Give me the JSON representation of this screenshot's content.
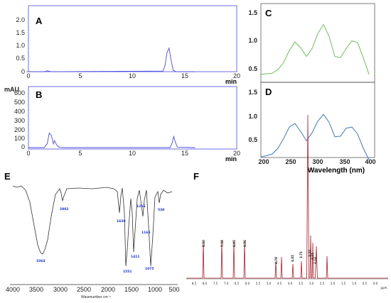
{
  "colors": {
    "hplc": "#4a4adf",
    "uv_c": "#6cbf5a",
    "uv_d": "#3f79b4",
    "ir": "#333333",
    "ir_label": "#1a2fd0",
    "nmr": "#a8202c"
  },
  "chart_data": [
    {
      "panel": "A",
      "type": "line",
      "xlabel": "min",
      "ylabel": "",
      "xlim": [
        0,
        20
      ],
      "ylim": [
        0,
        2.3
      ],
      "x_ticks": [
        "0",
        "5",
        "10",
        "15",
        "20"
      ],
      "y_ticks": [
        "0",
        "0.5",
        "1.0",
        "1.5",
        "2.0"
      ],
      "series": [
        {
          "x": [
            0,
            1.5,
            1.8,
            2.2,
            3,
            12.9,
            13.1,
            13.3,
            13.5,
            13.7,
            13.9,
            14.2,
            16
          ],
          "y": [
            0,
            0,
            0.03,
            0,
            0,
            0.02,
            0.18,
            0.65,
            0.82,
            0.4,
            0.05,
            0,
            0
          ]
        }
      ]
    },
    {
      "panel": "B",
      "type": "line",
      "ytitle": "mAU",
      "xlabel": "min",
      "ylabel": "",
      "xlim": [
        0,
        20
      ],
      "ylim": [
        0,
        650
      ],
      "x_ticks": [
        "0",
        "5",
        "10",
        "15",
        "20"
      ],
      "y_ticks": [
        "0",
        "100",
        "200",
        "300",
        "400",
        "500",
        "600"
      ],
      "series": [
        {
          "x": [
            0,
            1.5,
            1.8,
            2.0,
            2.2,
            2.4,
            2.5,
            2.7,
            2.85,
            3.0,
            3.5,
            13.6,
            13.8,
            13.95,
            14.1,
            14.3,
            16
          ],
          "y": [
            0,
            0,
            40,
            155,
            130,
            40,
            75,
            30,
            10,
            2,
            0,
            0,
            50,
            118,
            60,
            5,
            0
          ]
        }
      ]
    },
    {
      "panel": "C",
      "type": "line",
      "xlabel": "",
      "ylabel": "",
      "xlim": [
        200,
        400
      ],
      "ylim": [
        0.3,
        1.6
      ],
      "x_ticks": [],
      "y_ticks": [
        "0.5",
        "1.0",
        "1.5"
      ],
      "series": [
        {
          "x": [
            200,
            210,
            220,
            230,
            240,
            250,
            260,
            270,
            280,
            290,
            300,
            310,
            320,
            330,
            340,
            350,
            360,
            370,
            380,
            390
          ],
          "y": [
            0.42,
            0.43,
            0.44,
            0.5,
            0.62,
            0.82,
            0.96,
            0.86,
            0.72,
            0.85,
            1.1,
            1.25,
            1.05,
            0.72,
            0.7,
            0.85,
            0.98,
            0.95,
            0.7,
            0.42
          ]
        }
      ]
    },
    {
      "panel": "D",
      "type": "line",
      "xlabel": "Wavelength (nm)",
      "ylabel": "",
      "xlim": [
        200,
        400
      ],
      "ylim": [
        0.3,
        1.6
      ],
      "x_ticks": [
        "200",
        "250",
        "300",
        "350",
        "400"
      ],
      "y_ticks": [
        "0.5",
        "1.0",
        "1.5"
      ],
      "series": [
        {
          "x": [
            200,
            210,
            220,
            230,
            240,
            250,
            260,
            270,
            280,
            290,
            300,
            310,
            320,
            330,
            340,
            350,
            360,
            370,
            380,
            390
          ],
          "y": [
            0.3,
            0.32,
            0.35,
            0.45,
            0.62,
            0.82,
            0.88,
            0.74,
            0.58,
            0.72,
            0.92,
            1.04,
            0.9,
            0.65,
            0.66,
            0.8,
            0.82,
            0.7,
            0.45,
            0.25
          ]
        }
      ]
    },
    {
      "panel": "E",
      "type": "line",
      "xlabel": "Wavenumber cm⁻¹",
      "ylabel": "",
      "xlim": [
        4000,
        500
      ],
      "x_ticks": [
        "4000",
        "3500",
        "3000",
        "2500",
        "2000",
        "1500",
        "1000",
        "500"
      ],
      "peak_labels": [
        "3364",
        "2882",
        "1650",
        "1551",
        "1411",
        "1256",
        "1165",
        "1075",
        "530"
      ]
    },
    {
      "panel": "F",
      "type": "line",
      "xlabel": "ppm",
      "ylabel": "",
      "xlim": [
        9.0,
        0.0
      ],
      "x_ticks": [
        "8.5",
        "8.0",
        "7.5",
        "7.0",
        "6.5",
        "6.0",
        "5.5",
        "5.0",
        "4.5",
        "4.0",
        "3.5",
        "3.0",
        "2.5",
        "2.0",
        "1.5",
        "1.0",
        "0.5",
        "0.0"
      ],
      "peak_labels": [
        "8.30",
        "7.38",
        "6.85",
        "6.36",
        "4.78",
        "4.02",
        "3.71",
        "3.33",
        "3.21",
        "3.14"
      ]
    }
  ]
}
